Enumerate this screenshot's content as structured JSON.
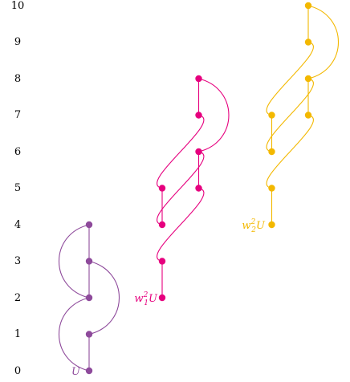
{
  "y_axis": {
    "labels": [
      "0",
      "1",
      "2",
      "3",
      "4",
      "5",
      "6",
      "7",
      "8",
      "9",
      "10"
    ]
  },
  "colors": {
    "purple": "#8e4a9b",
    "magenta": "#e6007e",
    "gold": "#f3b800"
  },
  "labels": {
    "u": "U",
    "w1_base": "w",
    "w1_sup": "2",
    "w1_sub": "1",
    "w1_tail": "U",
    "w2_base": "w",
    "w2_sup": "2",
    "w2_sub": "2",
    "w2_tail": "U"
  },
  "groups": [
    {
      "name": "U",
      "color": "purple",
      "column": 0,
      "base_level": 0,
      "points": [
        {
          "col": 0,
          "level": 0
        },
        {
          "col": 0,
          "level": 1
        },
        {
          "col": 0,
          "level": 2
        },
        {
          "col": 0,
          "level": 3
        },
        {
          "col": 0,
          "level": 4
        }
      ],
      "straight_edges": [
        [
          0,
          1
        ],
        [
          2,
          3
        ],
        [
          3,
          4
        ]
      ],
      "curved_edges": [
        [
          0,
          2
        ],
        [
          1,
          3
        ],
        [
          2,
          4
        ]
      ]
    },
    {
      "name": "w1^2 U",
      "color": "magenta",
      "column": 2,
      "base_level": 2,
      "points": [
        {
          "col": 2,
          "level": 2
        },
        {
          "col": 2,
          "level": 3
        },
        {
          "col": 2,
          "level": 4
        },
        {
          "col": 2,
          "level": 5
        },
        {
          "col": 3,
          "level": 5
        },
        {
          "col": 3,
          "level": 6
        },
        {
          "col": 3,
          "level": 7
        },
        {
          "col": 3,
          "level": 8
        }
      ],
      "straight_edges": [
        [
          0,
          1
        ],
        [
          2,
          3
        ],
        [
          4,
          5
        ],
        [
          6,
          7
        ]
      ],
      "curved_edges": [
        [
          1,
          4
        ],
        [
          2,
          5
        ],
        [
          3,
          6
        ],
        [
          5,
          7
        ]
      ]
    },
    {
      "name": "w2^2 U",
      "color": "gold",
      "column": 5,
      "base_level": 4,
      "points": [
        {
          "col": 5,
          "level": 4
        },
        {
          "col": 5,
          "level": 5
        },
        {
          "col": 5,
          "level": 6
        },
        {
          "col": 5,
          "level": 7
        },
        {
          "col": 6,
          "level": 7
        },
        {
          "col": 6,
          "level": 8
        },
        {
          "col": 6,
          "level": 9
        },
        {
          "col": 6,
          "level": 10
        }
      ],
      "straight_edges": [
        [
          0,
          1
        ],
        [
          2,
          3
        ],
        [
          4,
          5
        ],
        [
          6,
          7
        ]
      ],
      "curved_edges": [
        [
          1,
          4
        ],
        [
          2,
          5
        ],
        [
          3,
          6
        ],
        [
          5,
          7
        ]
      ]
    }
  ]
}
